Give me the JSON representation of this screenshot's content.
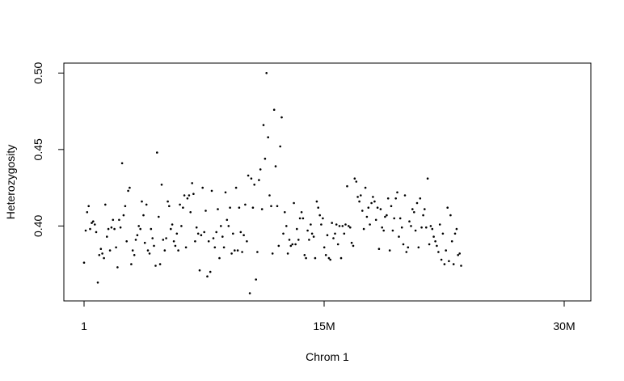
{
  "chart_data": {
    "type": "scatter",
    "title": "",
    "xlabel": "Chrom 1",
    "ylabel": "Heterozygosity",
    "x_unit": "bp",
    "xlim": [
      0,
      31200000
    ],
    "ylim": [
      0.351,
      0.5065
    ],
    "x_ticks": [
      {
        "value": 0,
        "label": "1"
      },
      {
        "value": 15000000,
        "label": "15M"
      },
      {
        "value": 30000000,
        "label": "30M"
      }
    ],
    "y_ticks": [
      {
        "value": 0.4,
        "label": "0.40"
      },
      {
        "value": 0.45,
        "label": "0.45"
      },
      {
        "value": 0.5,
        "label": "0.50"
      }
    ],
    "grid": false,
    "legend": "none",
    "point_color": "#000000",
    "points": [
      [
        0,
        0.376
      ],
      [
        100000,
        0.397
      ],
      [
        190000,
        0.409
      ],
      [
        290000,
        0.413
      ],
      [
        380000,
        0.398
      ],
      [
        480000,
        0.402
      ],
      [
        570000,
        0.403
      ],
      [
        670000,
        0.401
      ],
      [
        760000,
        0.396
      ],
      [
        860000,
        0.363
      ],
      [
        950000,
        0.381
      ],
      [
        1050000,
        0.385
      ],
      [
        1140000,
        0.382
      ],
      [
        1240000,
        0.379
      ],
      [
        1330000,
        0.414
      ],
      [
        1430000,
        0.393
      ],
      [
        1520000,
        0.398
      ],
      [
        1620000,
        0.384
      ],
      [
        1710000,
        0.399
      ],
      [
        1810000,
        0.404
      ],
      [
        1900000,
        0.398
      ],
      [
        2000000,
        0.386
      ],
      [
        2090000,
        0.373
      ],
      [
        2190000,
        0.404
      ],
      [
        2280000,
        0.399
      ],
      [
        2380000,
        0.441
      ],
      [
        2470000,
        0.407
      ],
      [
        2570000,
        0.413
      ],
      [
        2660000,
        0.39
      ],
      [
        2760000,
        0.423
      ],
      [
        2850000,
        0.425
      ],
      [
        2950000,
        0.375
      ],
      [
        3040000,
        0.384
      ],
      [
        3140000,
        0.381
      ],
      [
        3230000,
        0.391
      ],
      [
        3330000,
        0.394
      ],
      [
        3420000,
        0.4
      ],
      [
        3520000,
        0.398
      ],
      [
        3610000,
        0.416
      ],
      [
        3710000,
        0.407
      ],
      [
        3800000,
        0.389
      ],
      [
        3900000,
        0.414
      ],
      [
        3990000,
        0.384
      ],
      [
        4090000,
        0.382
      ],
      [
        4180000,
        0.398
      ],
      [
        4280000,
        0.392
      ],
      [
        4370000,
        0.387
      ],
      [
        4470000,
        0.374
      ],
      [
        4560000,
        0.448
      ],
      [
        4660000,
        0.406
      ],
      [
        4750000,
        0.375
      ],
      [
        4850000,
        0.427
      ],
      [
        4940000,
        0.391
      ],
      [
        5040000,
        0.384
      ],
      [
        5130000,
        0.392
      ],
      [
        5230000,
        0.416
      ],
      [
        5320000,
        0.413
      ],
      [
        5420000,
        0.398
      ],
      [
        5510000,
        0.401
      ],
      [
        5610000,
        0.39
      ],
      [
        5700000,
        0.387
      ],
      [
        5800000,
        0.395
      ],
      [
        5890000,
        0.384
      ],
      [
        5990000,
        0.414
      ],
      [
        6080000,
        0.4
      ],
      [
        6180000,
        0.412
      ],
      [
        6270000,
        0.42
      ],
      [
        6370000,
        0.386
      ],
      [
        6460000,
        0.418
      ],
      [
        6560000,
        0.42
      ],
      [
        6650000,
        0.409
      ],
      [
        6750000,
        0.428
      ],
      [
        6840000,
        0.421
      ],
      [
        6940000,
        0.39
      ],
      [
        7030000,
        0.399
      ],
      [
        7130000,
        0.395
      ],
      [
        7220000,
        0.371
      ],
      [
        7320000,
        0.394
      ],
      [
        7410000,
        0.425
      ],
      [
        7510000,
        0.396
      ],
      [
        7600000,
        0.41
      ],
      [
        7700000,
        0.367
      ],
      [
        7790000,
        0.39
      ],
      [
        7890000,
        0.37
      ],
      [
        7980000,
        0.423
      ],
      [
        8080000,
        0.392
      ],
      [
        8170000,
        0.386
      ],
      [
        8270000,
        0.396
      ],
      [
        8360000,
        0.411
      ],
      [
        8460000,
        0.379
      ],
      [
        8550000,
        0.4
      ],
      [
        8650000,
        0.393
      ],
      [
        8740000,
        0.386
      ],
      [
        8840000,
        0.422
      ],
      [
        8930000,
        0.404
      ],
      [
        9030000,
        0.4
      ],
      [
        9120000,
        0.412
      ],
      [
        9220000,
        0.382
      ],
      [
        9310000,
        0.395
      ],
      [
        9410000,
        0.384
      ],
      [
        9500000,
        0.425
      ],
      [
        9600000,
        0.384
      ],
      [
        9690000,
        0.412
      ],
      [
        9790000,
        0.396
      ],
      [
        9880000,
        0.383
      ],
      [
        9980000,
        0.394
      ],
      [
        10070000,
        0.414
      ],
      [
        10170000,
        0.39
      ],
      [
        10260000,
        0.433
      ],
      [
        10360000,
        0.356
      ],
      [
        10450000,
        0.431
      ],
      [
        10550000,
        0.412
      ],
      [
        10640000,
        0.427
      ],
      [
        10740000,
        0.365
      ],
      [
        10830000,
        0.383
      ],
      [
        10930000,
        0.43
      ],
      [
        11020000,
        0.437
      ],
      [
        11120000,
        0.411
      ],
      [
        11210000,
        0.466
      ],
      [
        11310000,
        0.444
      ],
      [
        11400000,
        0.5
      ],
      [
        11500000,
        0.458
      ],
      [
        11590000,
        0.42
      ],
      [
        11690000,
        0.413
      ],
      [
        11780000,
        0.382
      ],
      [
        11880000,
        0.476
      ],
      [
        11970000,
        0.439
      ],
      [
        12070000,
        0.413
      ],
      [
        12160000,
        0.387
      ],
      [
        12260000,
        0.452
      ],
      [
        12350000,
        0.471
      ],
      [
        12450000,
        0.395
      ],
      [
        12540000,
        0.409
      ],
      [
        12640000,
        0.4
      ],
      [
        12730000,
        0.382
      ],
      [
        12830000,
        0.391
      ],
      [
        12920000,
        0.387
      ],
      [
        13020000,
        0.388
      ],
      [
        13110000,
        0.415
      ],
      [
        13210000,
        0.388
      ],
      [
        13300000,
        0.398
      ],
      [
        13400000,
        0.391
      ],
      [
        13490000,
        0.405
      ],
      [
        13590000,
        0.409
      ],
      [
        13680000,
        0.405
      ],
      [
        13780000,
        0.381
      ],
      [
        13870000,
        0.379
      ],
      [
        13970000,
        0.397
      ],
      [
        14060000,
        0.391
      ],
      [
        14160000,
        0.401
      ],
      [
        14250000,
        0.395
      ],
      [
        14350000,
        0.393
      ],
      [
        14440000,
        0.379
      ],
      [
        14540000,
        0.416
      ],
      [
        14630000,
        0.412
      ],
      [
        14730000,
        0.407
      ],
      [
        14820000,
        0.401
      ],
      [
        14920000,
        0.405
      ],
      [
        15010000,
        0.386
      ],
      [
        15110000,
        0.381
      ],
      [
        15200000,
        0.394
      ],
      [
        15300000,
        0.379
      ],
      [
        15390000,
        0.378
      ],
      [
        15490000,
        0.402
      ],
      [
        15580000,
        0.392
      ],
      [
        15680000,
        0.395
      ],
      [
        15770000,
        0.401
      ],
      [
        15870000,
        0.388
      ],
      [
        15960000,
        0.4
      ],
      [
        16060000,
        0.379
      ],
      [
        16150000,
        0.4
      ],
      [
        16250000,
        0.395
      ],
      [
        16340000,
        0.401
      ],
      [
        16440000,
        0.426
      ],
      [
        16530000,
        0.4
      ],
      [
        16630000,
        0.399
      ],
      [
        16720000,
        0.389
      ],
      [
        16820000,
        0.387
      ],
      [
        16910000,
        0.431
      ],
      [
        17010000,
        0.429
      ],
      [
        17100000,
        0.419
      ],
      [
        17200000,
        0.416
      ],
      [
        17290000,
        0.42
      ],
      [
        17390000,
        0.41
      ],
      [
        17480000,
        0.398
      ],
      [
        17580000,
        0.425
      ],
      [
        17670000,
        0.406
      ],
      [
        17770000,
        0.412
      ],
      [
        17860000,
        0.401
      ],
      [
        17960000,
        0.415
      ],
      [
        18050000,
        0.419
      ],
      [
        18150000,
        0.416
      ],
      [
        18240000,
        0.404
      ],
      [
        18340000,
        0.412
      ],
      [
        18430000,
        0.385
      ],
      [
        18530000,
        0.411
      ],
      [
        18620000,
        0.399
      ],
      [
        18720000,
        0.397
      ],
      [
        18810000,
        0.406
      ],
      [
        18910000,
        0.407
      ],
      [
        19000000,
        0.418
      ],
      [
        19100000,
        0.384
      ],
      [
        19190000,
        0.413
      ],
      [
        19290000,
        0.397
      ],
      [
        19380000,
        0.405
      ],
      [
        19480000,
        0.418
      ],
      [
        19570000,
        0.422
      ],
      [
        19670000,
        0.393
      ],
      [
        19760000,
        0.405
      ],
      [
        19860000,
        0.399
      ],
      [
        19950000,
        0.388
      ],
      [
        20050000,
        0.42
      ],
      [
        20140000,
        0.383
      ],
      [
        20240000,
        0.386
      ],
      [
        20330000,
        0.403
      ],
      [
        20430000,
        0.4
      ],
      [
        20520000,
        0.411
      ],
      [
        20620000,
        0.409
      ],
      [
        20710000,
        0.397
      ],
      [
        20810000,
        0.415
      ],
      [
        20900000,
        0.386
      ],
      [
        21000000,
        0.418
      ],
      [
        21090000,
        0.399
      ],
      [
        21190000,
        0.407
      ],
      [
        21280000,
        0.411
      ],
      [
        21380000,
        0.399
      ],
      [
        21470000,
        0.431
      ],
      [
        21570000,
        0.388
      ],
      [
        21660000,
        0.4
      ],
      [
        21760000,
        0.398
      ],
      [
        21850000,
        0.393
      ],
      [
        21950000,
        0.39
      ],
      [
        22040000,
        0.387
      ],
      [
        22140000,
        0.383
      ],
      [
        22230000,
        0.401
      ],
      [
        22330000,
        0.378
      ],
      [
        22420000,
        0.395
      ],
      [
        22520000,
        0.375
      ],
      [
        22610000,
        0.384
      ],
      [
        22710000,
        0.412
      ],
      [
        22800000,
        0.377
      ],
      [
        22900000,
        0.407
      ],
      [
        22990000,
        0.39
      ],
      [
        23090000,
        0.375
      ],
      [
        23180000,
        0.395
      ],
      [
        23280000,
        0.398
      ],
      [
        23370000,
        0.381
      ],
      [
        23470000,
        0.382
      ],
      [
        23560000,
        0.374
      ]
    ]
  }
}
